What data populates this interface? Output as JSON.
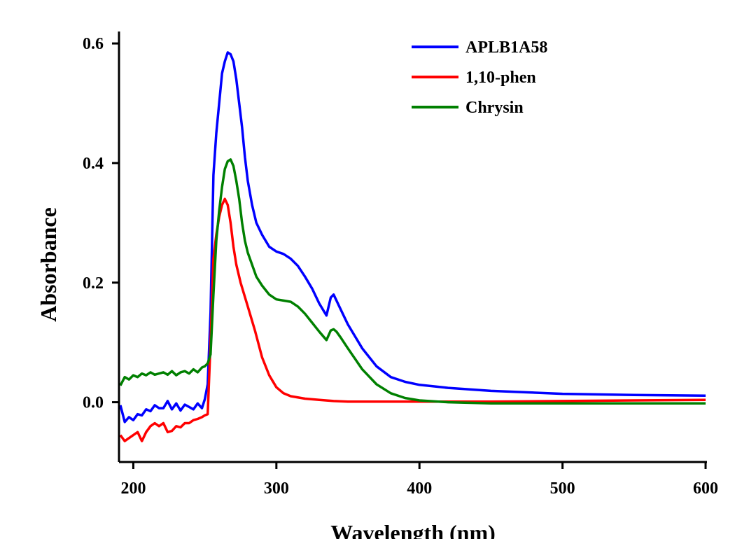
{
  "chart_data": {
    "type": "line",
    "title": "",
    "xlabel": "Wavelength (nm)",
    "ylabel": "Absorbance",
    "xlim": [
      190,
      600
    ],
    "ylim": [
      -0.1,
      0.62
    ],
    "xticks": [
      200,
      300,
      400,
      500,
      600
    ],
    "xtick_labels": [
      "200",
      "300",
      "400",
      "500",
      "600"
    ],
    "yticks": [
      0.0,
      0.2,
      0.4,
      0.6
    ],
    "ytick_labels": [
      "0.0",
      "0.2",
      "0.4",
      "0.6"
    ],
    "grid": false,
    "legend_position": "top-right",
    "series": [
      {
        "name": "APLB1A58",
        "color": "#0000ff",
        "x": [
          191,
          194,
          197,
          200,
          203,
          206,
          209,
          212,
          215,
          218,
          221,
          224,
          227,
          230,
          233,
          236,
          239,
          242,
          245,
          248,
          250,
          252,
          254,
          256,
          258,
          260,
          262,
          264,
          266,
          268,
          270,
          272,
          274,
          276,
          278,
          280,
          283,
          286,
          290,
          295,
          300,
          305,
          310,
          315,
          320,
          325,
          330,
          335,
          338,
          340,
          342,
          345,
          350,
          360,
          370,
          380,
          390,
          400,
          420,
          450,
          500,
          550,
          600
        ],
        "values": [
          -0.005,
          -0.033,
          -0.025,
          -0.03,
          -0.02,
          -0.022,
          -0.012,
          -0.015,
          -0.005,
          -0.01,
          -0.01,
          0.002,
          -0.012,
          -0.002,
          -0.014,
          -0.004,
          -0.008,
          -0.012,
          -0.002,
          -0.01,
          0.005,
          0.03,
          0.15,
          0.38,
          0.45,
          0.5,
          0.55,
          0.57,
          0.585,
          0.582,
          0.57,
          0.54,
          0.5,
          0.46,
          0.41,
          0.37,
          0.33,
          0.3,
          0.28,
          0.26,
          0.252,
          0.248,
          0.24,
          0.228,
          0.21,
          0.19,
          0.165,
          0.145,
          0.175,
          0.18,
          0.17,
          0.155,
          0.13,
          0.09,
          0.06,
          0.042,
          0.034,
          0.029,
          0.024,
          0.019,
          0.014,
          0.012,
          0.011
        ]
      },
      {
        "name": "1,10-phen",
        "color": "#ff0000",
        "x": [
          191,
          194,
          197,
          200,
          203,
          206,
          209,
          212,
          215,
          218,
          221,
          224,
          227,
          230,
          233,
          236,
          239,
          242,
          245,
          248,
          250,
          252,
          254,
          256,
          258,
          260,
          262,
          264,
          266,
          268,
          270,
          272,
          275,
          280,
          285,
          290,
          295,
          300,
          305,
          310,
          320,
          330,
          340,
          350,
          400,
          450,
          500,
          550,
          600
        ],
        "values": [
          -0.055,
          -0.065,
          -0.06,
          -0.055,
          -0.05,
          -0.065,
          -0.05,
          -0.04,
          -0.035,
          -0.04,
          -0.035,
          -0.05,
          -0.048,
          -0.04,
          -0.042,
          -0.035,
          -0.035,
          -0.03,
          -0.028,
          -0.025,
          -0.022,
          -0.02,
          0.1,
          0.24,
          0.28,
          0.31,
          0.33,
          0.34,
          0.33,
          0.3,
          0.26,
          0.23,
          0.2,
          0.16,
          0.12,
          0.075,
          0.045,
          0.025,
          0.015,
          0.01,
          0.006,
          0.004,
          0.002,
          0.001,
          0.001,
          0.001,
          0.002,
          0.003,
          0.004
        ]
      },
      {
        "name": "Chrysin",
        "color": "#008000",
        "x": [
          191,
          194,
          197,
          200,
          203,
          206,
          209,
          212,
          215,
          218,
          221,
          224,
          227,
          230,
          233,
          236,
          239,
          242,
          245,
          248,
          250,
          252,
          254,
          256,
          258,
          260,
          262,
          264,
          266,
          268,
          270,
          272,
          274,
          276,
          278,
          280,
          283,
          286,
          290,
          295,
          300,
          305,
          310,
          315,
          320,
          325,
          330,
          335,
          338,
          340,
          342,
          345,
          350,
          360,
          370,
          380,
          390,
          400,
          420,
          450,
          500,
          550,
          600
        ],
        "values": [
          0.028,
          0.042,
          0.038,
          0.045,
          0.042,
          0.048,
          0.045,
          0.05,
          0.046,
          0.048,
          0.05,
          0.046,
          0.052,
          0.045,
          0.05,
          0.052,
          0.048,
          0.055,
          0.05,
          0.058,
          0.06,
          0.065,
          0.08,
          0.18,
          0.27,
          0.32,
          0.36,
          0.39,
          0.403,
          0.406,
          0.395,
          0.37,
          0.34,
          0.3,
          0.27,
          0.25,
          0.23,
          0.21,
          0.195,
          0.18,
          0.172,
          0.17,
          0.168,
          0.16,
          0.148,
          0.133,
          0.118,
          0.104,
          0.12,
          0.122,
          0.118,
          0.108,
          0.09,
          0.055,
          0.03,
          0.015,
          0.007,
          0.003,
          0.0,
          -0.002,
          -0.002,
          -0.002,
          -0.002
        ]
      }
    ]
  }
}
